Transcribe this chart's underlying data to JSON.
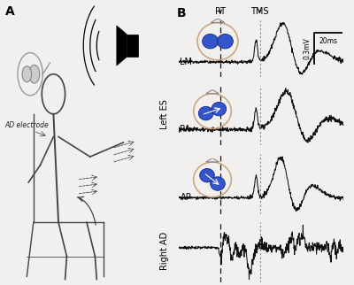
{
  "title_A": "A",
  "title_B": "B",
  "bg_color": "#f2f0ee",
  "line_color": "#1a1a1a",
  "label_LM": "LM",
  "label_PA": "PA",
  "label_AP": "AP",
  "label_RT": "RT",
  "label_TMS": "TMS",
  "label_left_es": "Left ES",
  "label_right_ad": "Right AD",
  "label_ad_electrode": "AD electrode",
  "scale_bar_mv": "0.3mV",
  "scale_bar_ms": "20ms",
  "coil_color": "#c8a882",
  "dot_color": "#3355cc",
  "dot_edge": "#112288"
}
